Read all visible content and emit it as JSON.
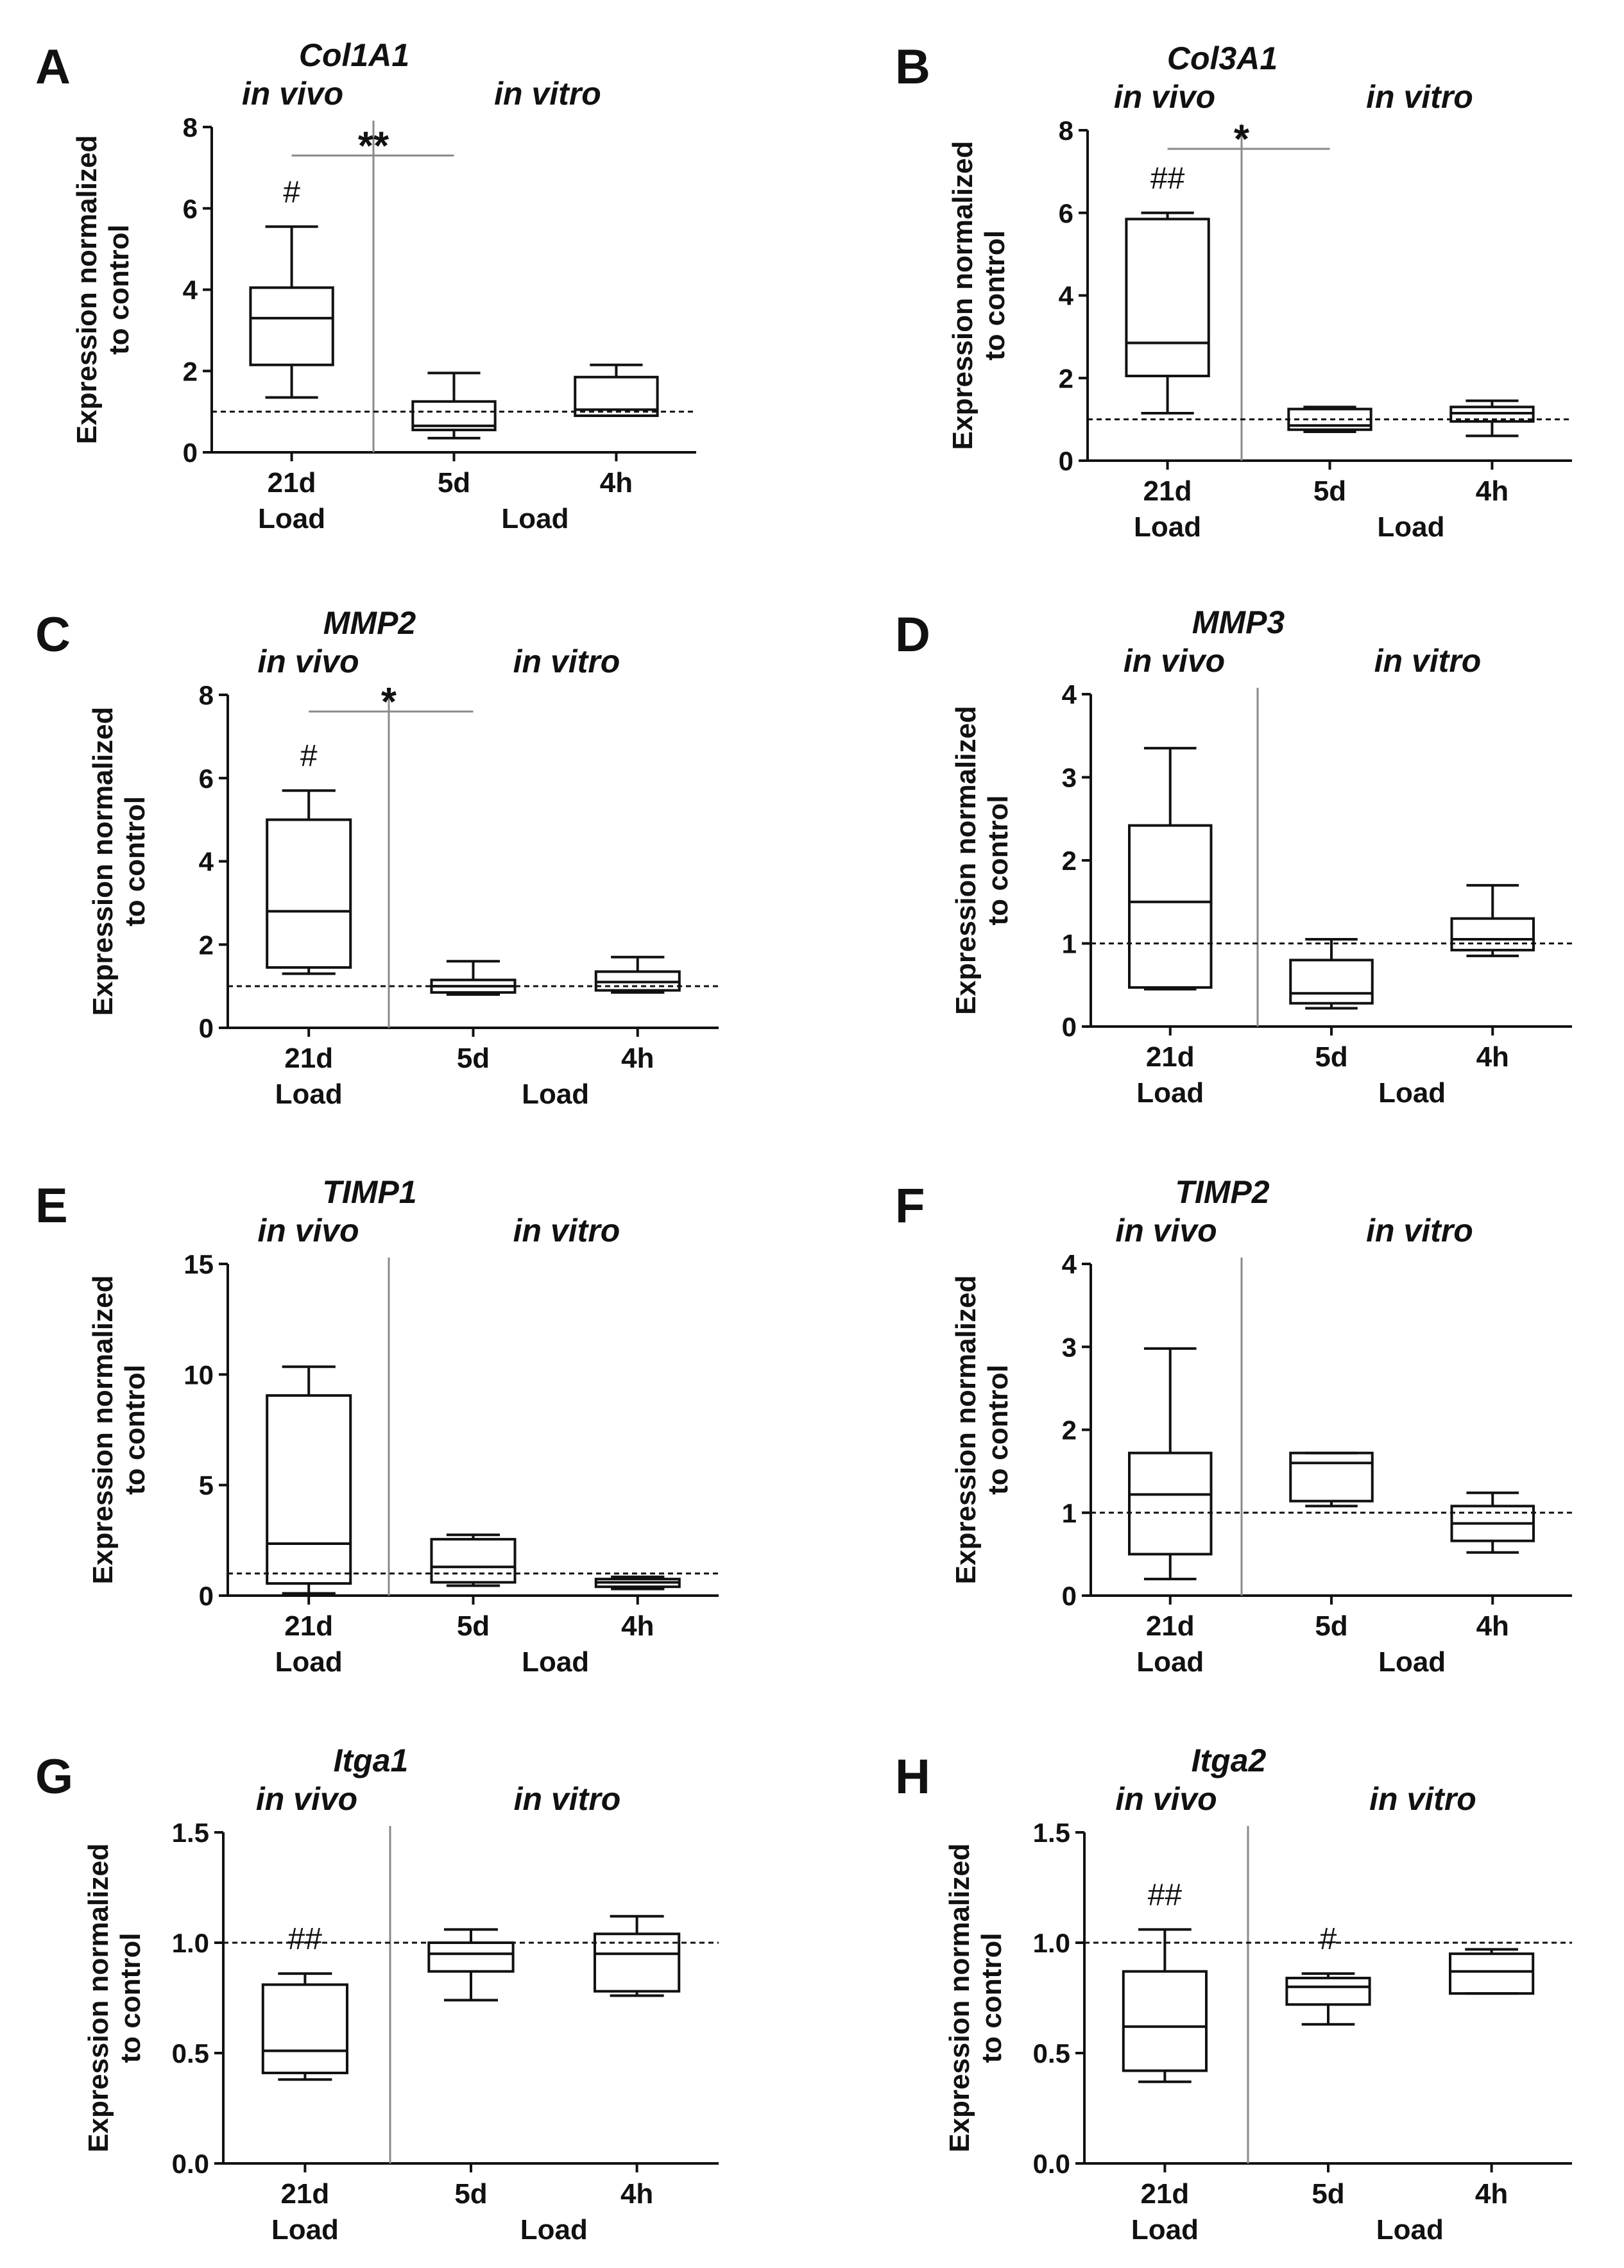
{
  "chart_data": [
    {
      "type": "box",
      "panel": "A",
      "title": "Col1A1",
      "region_labels": [
        "in vivo",
        "in vitro"
      ],
      "ylabel_lines": [
        "Expression normalized",
        "to control"
      ],
      "categories": [
        "21d",
        "5d",
        "4h"
      ],
      "group_labels": [
        "Load",
        "Load"
      ],
      "ylim": [
        0,
        8
      ],
      "yticks": [
        0,
        2,
        4,
        6,
        8
      ],
      "ytick_labels": [
        "0",
        "2",
        "4",
        "6",
        "8"
      ],
      "reference_line": 1,
      "boxes": [
        {
          "min": 1.35,
          "q1": 2.15,
          "median": 3.3,
          "q3": 4.05,
          "max": 5.55,
          "annotation": "#"
        },
        {
          "min": 0.35,
          "q1": 0.55,
          "median": 0.65,
          "q3": 1.25,
          "max": 1.95,
          "annotation": ""
        },
        {
          "min": 0.9,
          "q1": 0.9,
          "median": 1.05,
          "q3": 1.85,
          "max": 2.15,
          "annotation": ""
        }
      ],
      "significance": {
        "from": 0,
        "to": 1,
        "label": "**",
        "y": 7.3
      }
    },
    {
      "type": "box",
      "panel": "B",
      "title": "Col3A1",
      "region_labels": [
        "in vivo",
        "in vitro"
      ],
      "ylabel_lines": [
        "Expression normalized",
        "to control"
      ],
      "categories": [
        "21d",
        "5d",
        "4h"
      ],
      "group_labels": [
        "Load",
        "Load"
      ],
      "ylim": [
        0,
        8
      ],
      "yticks": [
        0,
        2,
        4,
        6,
        8
      ],
      "ytick_labels": [
        "0",
        "2",
        "4",
        "6",
        "8"
      ],
      "reference_line": 1,
      "boxes": [
        {
          "min": 1.15,
          "q1": 2.05,
          "median": 2.85,
          "q3": 5.85,
          "max": 6.0,
          "annotation": "##"
        },
        {
          "min": 0.7,
          "q1": 0.75,
          "median": 0.85,
          "q3": 1.25,
          "max": 1.3,
          "annotation": ""
        },
        {
          "min": 0.6,
          "q1": 0.95,
          "median": 1.15,
          "q3": 1.3,
          "max": 1.45,
          "annotation": ""
        }
      ],
      "significance": {
        "from": 0,
        "to": 1,
        "label": "*",
        "y": 7.55
      }
    },
    {
      "type": "box",
      "panel": "C",
      "title": "MMP2",
      "region_labels": [
        "in vivo",
        "in vitro"
      ],
      "ylabel_lines": [
        "Expression normalized",
        "to control"
      ],
      "categories": [
        "21d",
        "5d",
        "4h"
      ],
      "group_labels": [
        "Load",
        "Load"
      ],
      "ylim": [
        0,
        8
      ],
      "yticks": [
        0,
        2,
        4,
        6,
        8
      ],
      "ytick_labels": [
        "0",
        "2",
        "4",
        "6",
        "8"
      ],
      "reference_line": 1,
      "boxes": [
        {
          "min": 1.3,
          "q1": 1.45,
          "median": 2.8,
          "q3": 5.0,
          "max": 5.7,
          "annotation": "#"
        },
        {
          "min": 0.8,
          "q1": 0.85,
          "median": 1.0,
          "q3": 1.15,
          "max": 1.6,
          "annotation": ""
        },
        {
          "min": 0.85,
          "q1": 0.9,
          "median": 1.1,
          "q3": 1.35,
          "max": 1.7,
          "annotation": ""
        }
      ],
      "significance": {
        "from": 0,
        "to": 1,
        "label": "*",
        "y": 7.6
      }
    },
    {
      "type": "box",
      "panel": "D",
      "title": "MMP3",
      "region_labels": [
        "in vivo",
        "in vitro"
      ],
      "ylabel_lines": [
        "Expression normalized",
        "to control"
      ],
      "categories": [
        "21d",
        "5d",
        "4h"
      ],
      "group_labels": [
        "Load",
        "Load"
      ],
      "ylim": [
        0,
        4
      ],
      "yticks": [
        0,
        1,
        2,
        3,
        4
      ],
      "ytick_labels": [
        "0",
        "1",
        "2",
        "3",
        "4"
      ],
      "reference_line": 1,
      "boxes": [
        {
          "min": 0.45,
          "q1": 0.47,
          "median": 1.5,
          "q3": 2.42,
          "max": 3.35,
          "annotation": ""
        },
        {
          "min": 0.22,
          "q1": 0.28,
          "median": 0.4,
          "q3": 0.8,
          "max": 1.05,
          "annotation": ""
        },
        {
          "min": 0.85,
          "q1": 0.92,
          "median": 1.05,
          "q3": 1.3,
          "max": 1.7,
          "annotation": ""
        }
      ]
    },
    {
      "type": "box",
      "panel": "E",
      "title": "TIMP1",
      "region_labels": [
        "in vivo",
        "in vitro"
      ],
      "ylabel_lines": [
        "Expression normalized",
        "to control"
      ],
      "categories": [
        "21d",
        "5d",
        "4h"
      ],
      "group_labels": [
        "Load",
        "Load"
      ],
      "ylim": [
        0,
        15
      ],
      "yticks": [
        0,
        5,
        10,
        15
      ],
      "ytick_labels": [
        "0",
        "5",
        "10",
        "15"
      ],
      "reference_line": 1,
      "boxes": [
        {
          "min": 0.1,
          "q1": 0.55,
          "median": 2.35,
          "q3": 9.05,
          "max": 10.35,
          "annotation": ""
        },
        {
          "min": 0.45,
          "q1": 0.6,
          "median": 1.3,
          "q3": 2.55,
          "max": 2.75,
          "annotation": ""
        },
        {
          "min": 0.3,
          "q1": 0.4,
          "median": 0.6,
          "q3": 0.75,
          "max": 0.85,
          "annotation": ""
        }
      ]
    },
    {
      "type": "box",
      "panel": "F",
      "title": "TIMP2",
      "region_labels": [
        "in vivo",
        "in vitro"
      ],
      "ylabel_lines": [
        "Expression normalized",
        "to control"
      ],
      "categories": [
        "21d",
        "5d",
        "4h"
      ],
      "group_labels": [
        "Load",
        "Load"
      ],
      "ylim": [
        0,
        4
      ],
      "yticks": [
        0,
        1,
        2,
        3,
        4
      ],
      "ytick_labels": [
        "0",
        "1",
        "2",
        "3",
        "4"
      ],
      "reference_line": 1,
      "boxes": [
        {
          "min": 0.2,
          "q1": 0.5,
          "median": 1.22,
          "q3": 1.72,
          "max": 2.98,
          "annotation": ""
        },
        {
          "min": 1.08,
          "q1": 1.14,
          "median": 1.6,
          "q3": 1.72,
          "max": 1.72,
          "annotation": ""
        },
        {
          "min": 0.52,
          "q1": 0.66,
          "median": 0.87,
          "q3": 1.08,
          "max": 1.24,
          "annotation": ""
        }
      ]
    },
    {
      "type": "box",
      "panel": "G",
      "title": "Itga1",
      "region_labels": [
        "in vivo",
        "in vitro"
      ],
      "ylabel_lines": [
        "Expression normalized",
        "to control"
      ],
      "categories": [
        "21d",
        "5d",
        "4h"
      ],
      "group_labels": [
        "Load",
        "Load"
      ],
      "ylim": [
        0,
        1.5
      ],
      "yticks": [
        0,
        0.5,
        1.0,
        1.5
      ],
      "ytick_labels": [
        "0.0",
        "0.5",
        "1.0",
        "1.5"
      ],
      "reference_line": 1,
      "boxes": [
        {
          "min": 0.38,
          "q1": 0.41,
          "median": 0.51,
          "q3": 0.81,
          "max": 0.86,
          "annotation": "##"
        },
        {
          "min": 0.74,
          "q1": 0.87,
          "median": 0.95,
          "q3": 1.0,
          "max": 1.06,
          "annotation": ""
        },
        {
          "min": 0.76,
          "q1": 0.78,
          "median": 0.95,
          "q3": 1.04,
          "max": 1.12,
          "annotation": ""
        }
      ]
    },
    {
      "type": "box",
      "panel": "H",
      "title": "Itga2",
      "region_labels": [
        "in vivo",
        "in vitro"
      ],
      "ylabel_lines": [
        "Expression normalized",
        "to control"
      ],
      "categories": [
        "21d",
        "5d",
        "4h"
      ],
      "group_labels": [
        "Load",
        "Load"
      ],
      "ylim": [
        0,
        1.5
      ],
      "yticks": [
        0,
        0.5,
        1.0,
        1.5
      ],
      "ytick_labels": [
        "0.0",
        "0.5",
        "1.0",
        "1.5"
      ],
      "reference_line": 1,
      "boxes": [
        {
          "min": 0.37,
          "q1": 0.42,
          "median": 0.62,
          "q3": 0.87,
          "max": 1.06,
          "annotation": "##"
        },
        {
          "min": 0.63,
          "q1": 0.72,
          "median": 0.8,
          "q3": 0.84,
          "max": 0.86,
          "annotation": "#"
        },
        {
          "min": 0.77,
          "q1": 0.77,
          "median": 0.87,
          "q3": 0.95,
          "max": 0.97,
          "annotation": ""
        }
      ]
    }
  ],
  "colors": {
    "line": "#111111",
    "divider": "#8a8a8a",
    "background": "#ffffff"
  }
}
